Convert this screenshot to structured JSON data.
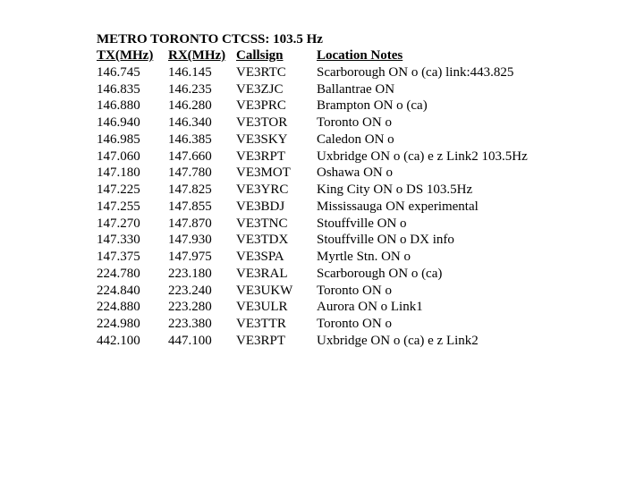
{
  "title": "METRO TORONTO CTCSS: 103.5 Hz",
  "header": {
    "tx": "TX(MHz)",
    "rx": "RX(MHz)",
    "cs": "Callsign",
    "loc": "Location Notes"
  },
  "rows": [
    {
      "tx": "146.745",
      "rx": "146.145",
      "cs": "VE3RTC",
      "loc": "Scarborough ON o (ca) link:443.825"
    },
    {
      "tx": "146.835",
      "rx": "146.235",
      "cs": "VE3ZJC",
      "loc": "Ballantrae ON"
    },
    {
      "tx": "146.880",
      "rx": "146.280",
      "cs": "VE3PRC",
      "loc": "Brampton ON o (ca)"
    },
    {
      "tx": "146.940",
      "rx": "146.340",
      "cs": "VE3TOR",
      "loc": "Toronto ON o"
    },
    {
      "tx": "146.985",
      "rx": "146.385",
      "cs": "VE3SKY",
      "loc": "Caledon ON o"
    },
    {
      "tx": "147.060",
      "rx": "147.660",
      "cs": "VE3RPT",
      "loc": "Uxbridge ON o (ca) e z Link2 103.5Hz"
    },
    {
      "tx": "147.180",
      "rx": "147.780",
      "cs": "VE3MOT",
      "loc": "Oshawa ON o"
    },
    {
      "tx": "147.225",
      "rx": "147.825",
      "cs": "VE3YRC",
      "loc": "King City ON o DS 103.5Hz"
    },
    {
      "tx": "147.255",
      "rx": "147.855",
      "cs": "VE3BDJ",
      "loc": "Mississauga ON experimental"
    },
    {
      "tx": "147.270",
      "rx": "147.870",
      "cs": "VE3TNC",
      "loc": "Stouffville ON o"
    },
    {
      "tx": "147.330",
      "rx": "147.930",
      "cs": "VE3TDX",
      "loc": "Stouffville ON o DX info"
    },
    {
      "tx": "147.375",
      "rx": "147.975",
      "cs": "VE3SPA",
      "loc": "Myrtle Stn. ON o"
    },
    {
      "tx": "224.780",
      "rx": "223.180",
      "cs": "VE3RAL",
      "loc": "Scarborough ON o (ca)"
    },
    {
      "tx": "224.840",
      "rx": "223.240",
      "cs": "VE3UKW",
      "loc": "Toronto ON o"
    },
    {
      "tx": "224.880",
      "rx": "223.280",
      "cs": "VE3ULR",
      "loc": "Aurora ON o Link1"
    },
    {
      "tx": "224.980",
      "rx": "223.380",
      "cs": "VE3TTR",
      "loc": "Toronto ON o"
    },
    {
      "tx": "442.100",
      "rx": "447.100",
      "cs": "VE3RPT",
      "loc": "Uxbridge ON o (ca) e z Link2"
    }
  ]
}
